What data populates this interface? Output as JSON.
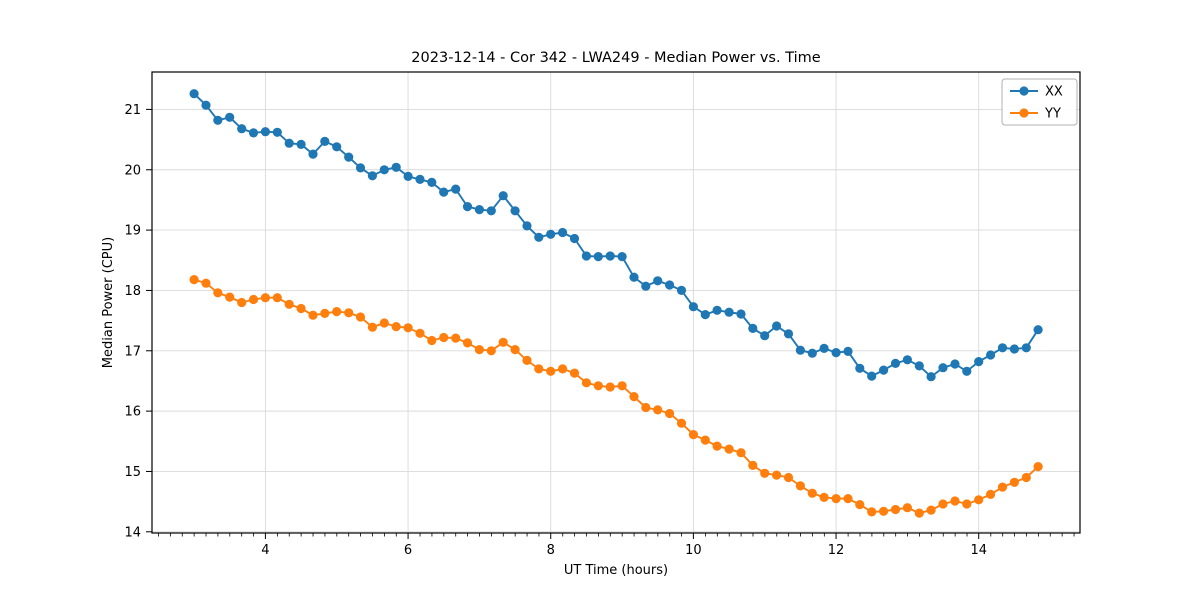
{
  "title": "2023-12-14 - Cor 342 - LWA249 - Median Power vs. Time",
  "colors": {
    "series_xx": "#1f77b4",
    "series_yy": "#ff7f0e",
    "grid": "#d9d9d9",
    "spine": "#000000",
    "legend_border": "#b0b0b0",
    "background": "#ffffff"
  },
  "chart_data": {
    "type": "line",
    "title": "2023-12-14 - Cor 342 - LWA249 - Median Power vs. Time",
    "xlabel": "UT Time (hours)",
    "ylabel": "Median Power (CPU)",
    "xlim": [
      2.41,
      15.42
    ],
    "ylim": [
      13.98,
      21.62
    ],
    "xticks": [
      4,
      6,
      8,
      10,
      12,
      14
    ],
    "yticks": [
      14,
      15,
      16,
      17,
      18,
      19,
      20,
      21
    ],
    "minor_xtick_step": 0.1667,
    "grid": true,
    "legend_position": "upper right",
    "marker": "o",
    "x": [
      3.0,
      3.167,
      3.333,
      3.5,
      3.667,
      3.833,
      4.0,
      4.167,
      4.333,
      4.5,
      4.667,
      4.833,
      5.0,
      5.167,
      5.333,
      5.5,
      5.667,
      5.833,
      6.0,
      6.167,
      6.333,
      6.5,
      6.667,
      6.833,
      7.0,
      7.167,
      7.333,
      7.5,
      7.667,
      7.833,
      8.0,
      8.167,
      8.333,
      8.5,
      8.667,
      8.833,
      9.0,
      9.167,
      9.333,
      9.5,
      9.667,
      9.833,
      10.0,
      10.167,
      10.333,
      10.5,
      10.667,
      10.833,
      11.0,
      11.167,
      11.333,
      11.5,
      11.667,
      11.833,
      12.0,
      12.167,
      12.333,
      12.5,
      12.667,
      12.833,
      13.0,
      13.167,
      13.333,
      13.5,
      13.667,
      13.833,
      14.0,
      14.167,
      14.333,
      14.5,
      14.667,
      14.833
    ],
    "series": [
      {
        "name": "XX",
        "color": "#1f77b4",
        "values": [
          21.26,
          21.07,
          20.82,
          20.87,
          20.68,
          20.61,
          20.63,
          20.62,
          20.44,
          20.42,
          20.26,
          20.47,
          20.38,
          20.21,
          20.03,
          19.9,
          20.0,
          20.04,
          19.89,
          19.84,
          19.79,
          19.63,
          19.68,
          19.39,
          19.34,
          19.32,
          19.57,
          19.32,
          19.07,
          18.88,
          18.93,
          18.96,
          18.86,
          18.57,
          18.56,
          18.57,
          18.56,
          18.22,
          18.07,
          18.16,
          18.09,
          18.0,
          17.73,
          17.6,
          17.67,
          17.64,
          17.61,
          17.37,
          17.25,
          17.41,
          17.28,
          17.01,
          16.96,
          17.04,
          16.97,
          16.99,
          16.71,
          16.58,
          16.68,
          16.79,
          16.85,
          16.75,
          16.57,
          16.72,
          16.78,
          16.66,
          16.82,
          16.93,
          17.05,
          17.03,
          17.05,
          17.35
        ]
      },
      {
        "name": "YY",
        "color": "#ff7f0e",
        "values": [
          18.18,
          18.12,
          17.96,
          17.89,
          17.8,
          17.85,
          17.88,
          17.88,
          17.77,
          17.7,
          17.59,
          17.62,
          17.65,
          17.63,
          17.56,
          17.39,
          17.46,
          17.4,
          17.38,
          17.29,
          17.17,
          17.22,
          17.21,
          17.13,
          17.02,
          17.0,
          17.14,
          17.02,
          16.84,
          16.7,
          16.66,
          16.7,
          16.63,
          16.47,
          16.42,
          16.4,
          16.42,
          16.24,
          16.06,
          16.02,
          15.96,
          15.8,
          15.61,
          15.52,
          15.42,
          15.37,
          15.31,
          15.1,
          14.97,
          14.94,
          14.9,
          14.76,
          14.64,
          14.57,
          14.55,
          14.55,
          14.45,
          14.33,
          14.34,
          14.37,
          14.4,
          14.31,
          14.36,
          14.46,
          14.51,
          14.46,
          14.53,
          14.62,
          14.74,
          14.82,
          14.9,
          15.08
        ]
      }
    ]
  }
}
